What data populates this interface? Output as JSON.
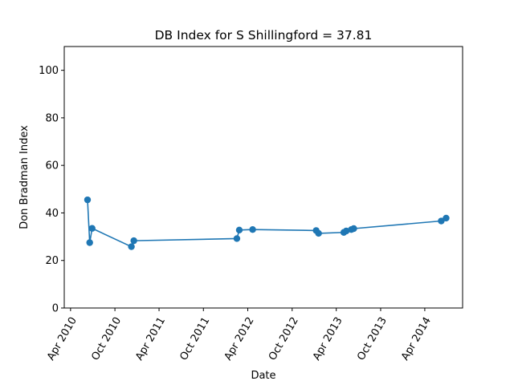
{
  "chart_data": {
    "type": "line",
    "title": "DB Index for S Shillingford = 37.81",
    "xlabel": "Date",
    "ylabel": "Don Bradman Index",
    "x_ticks": [
      "Apr 2010",
      "Oct 2010",
      "Apr 2011",
      "Oct 2011",
      "Apr 2012",
      "Oct 2012",
      "Apr 2013",
      "Oct 2013",
      "Apr 2014"
    ],
    "y_ticks": [
      0,
      20,
      40,
      60,
      80,
      100
    ],
    "ylim": [
      0,
      110
    ],
    "xlim": [
      "2010-03-06",
      "2014-09-04"
    ],
    "grid": false,
    "color": "#1f77b4",
    "series": [
      {
        "x": [
          "2010-06-10",
          "2010-06-19",
          "2010-06-29",
          "2010-12-08",
          "2010-12-18",
          "2012-02-16",
          "2012-02-26",
          "2012-04-21",
          "2013-01-08",
          "2013-01-18",
          "2013-05-02",
          "2013-05-12",
          "2013-06-02",
          "2013-06-12",
          "2014-06-08",
          "2014-06-28"
        ],
        "y": [
          45.5,
          27.5,
          33.5,
          25.8,
          28.3,
          29.2,
          32.8,
          33.0,
          32.6,
          31.4,
          31.8,
          32.4,
          33.0,
          33.4,
          36.6,
          37.81
        ]
      }
    ]
  }
}
